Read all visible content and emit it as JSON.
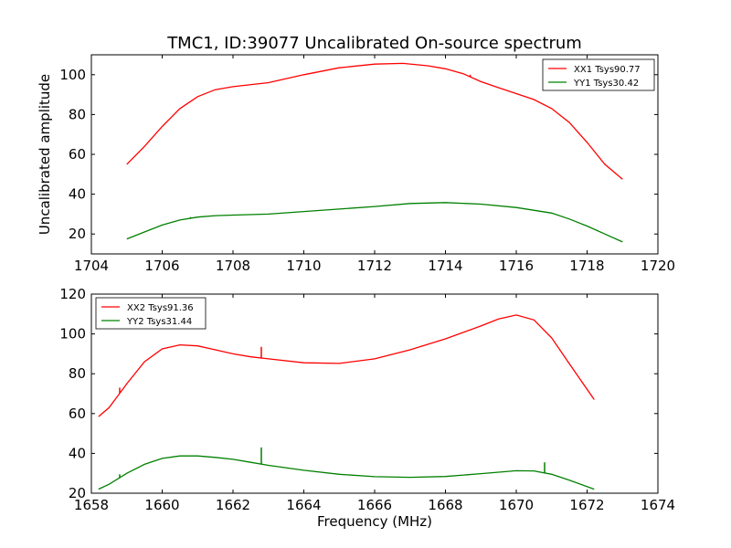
{
  "chart_data": [
    {
      "type": "line",
      "title": "TMC1, ID:39077 Uncalibrated On-source spectrum",
      "xlabel": "",
      "ylabel": "Uncalibrated amplitude",
      "xlim": [
        1704,
        1720
      ],
      "ylim": [
        10,
        110
      ],
      "xticks": [
        1704,
        1706,
        1708,
        1710,
        1712,
        1714,
        1716,
        1718,
        1720
      ],
      "yticks": [
        20,
        40,
        60,
        80,
        100
      ],
      "legend": "top-right",
      "grid": false,
      "series": [
        {
          "name": "XX1 Tsys90.77",
          "color": "#ff0000",
          "x": [
            1705.0,
            1705.5,
            1706.0,
            1706.5,
            1707.0,
            1707.5,
            1708.0,
            1709.0,
            1710.0,
            1711.0,
            1712.0,
            1712.8,
            1713.5,
            1714.0,
            1714.5,
            1715.0,
            1715.5,
            1716.0,
            1716.5,
            1717.0,
            1717.5,
            1718.0,
            1718.5,
            1719.0
          ],
          "y": [
            55,
            64,
            74,
            83,
            89,
            92.5,
            94,
            96,
            100,
            103.5,
            105.3,
            105.7,
            104.5,
            103,
            100.5,
            96.5,
            93.5,
            90.5,
            87.5,
            83,
            76,
            66,
            55,
            47.5
          ],
          "spikes": [
            {
              "x": 1714.7,
              "y": 100
            }
          ]
        },
        {
          "name": "YY1 Tsys30.42",
          "color": "#008000",
          "x": [
            1705.0,
            1705.5,
            1706.0,
            1706.5,
            1707.0,
            1707.5,
            1708.0,
            1709.0,
            1710.0,
            1711.0,
            1712.0,
            1713.0,
            1714.0,
            1715.0,
            1716.0,
            1717.0,
            1717.5,
            1718.0,
            1718.5,
            1719.0
          ],
          "y": [
            17.5,
            21,
            24.5,
            27,
            28.5,
            29.2,
            29.5,
            30,
            31.3,
            32.5,
            33.8,
            35.3,
            35.8,
            35,
            33.3,
            30.5,
            27.5,
            24,
            20,
            16
          ],
          "spikes": [
            {
              "x": 1706.8,
              "y": 28.5
            }
          ]
        }
      ]
    },
    {
      "type": "line",
      "title": "",
      "xlabel": "Frequency (MHz)",
      "ylabel": "",
      "xlim": [
        1658,
        1674
      ],
      "ylim": [
        20,
        120
      ],
      "xticks": [
        1658,
        1660,
        1662,
        1664,
        1666,
        1668,
        1670,
        1672,
        1674
      ],
      "yticks": [
        20,
        40,
        60,
        80,
        100,
        120
      ],
      "legend": "top-left",
      "grid": false,
      "series": [
        {
          "name": "XX2 Tsys91.36",
          "color": "#ff0000",
          "x": [
            1658.2,
            1658.5,
            1659.0,
            1659.5,
            1660.0,
            1660.5,
            1661.0,
            1661.5,
            1662.0,
            1662.5,
            1663.0,
            1664.0,
            1665.0,
            1666.0,
            1667.0,
            1668.0,
            1669.0,
            1669.5,
            1670.0,
            1670.5,
            1671.0,
            1671.5,
            1672.2
          ],
          "y": [
            58.5,
            63,
            75,
            86,
            92.5,
            94.5,
            94,
            92,
            90,
            88.5,
            87.5,
            85.5,
            85.2,
            87.5,
            92,
            97.5,
            104,
            107.5,
            109.5,
            107,
            98,
            85,
            67
          ],
          "spikes": [
            {
              "x": 1662.8,
              "y": 93.5
            },
            {
              "x": 1658.8,
              "y": 73
            }
          ]
        },
        {
          "name": "YY2 Tsys31.44",
          "color": "#008000",
          "x": [
            1658.2,
            1658.5,
            1659.0,
            1659.5,
            1660.0,
            1660.5,
            1661.0,
            1661.5,
            1662.0,
            1662.5,
            1663.0,
            1664.0,
            1665.0,
            1666.0,
            1667.0,
            1668.0,
            1669.0,
            1670.0,
            1670.5,
            1671.0,
            1671.5,
            1672.2
          ],
          "y": [
            22,
            24.5,
            30,
            34.5,
            37.5,
            38.7,
            38.7,
            38,
            37,
            35.5,
            34,
            31.5,
            29.5,
            28.3,
            28,
            28.4,
            29.8,
            31.3,
            31.2,
            29.5,
            26.5,
            22
          ],
          "spikes": [
            {
              "x": 1662.8,
              "y": 43
            },
            {
              "x": 1670.8,
              "y": 35.5
            },
            {
              "x": 1658.8,
              "y": 29.5
            }
          ]
        }
      ]
    }
  ]
}
